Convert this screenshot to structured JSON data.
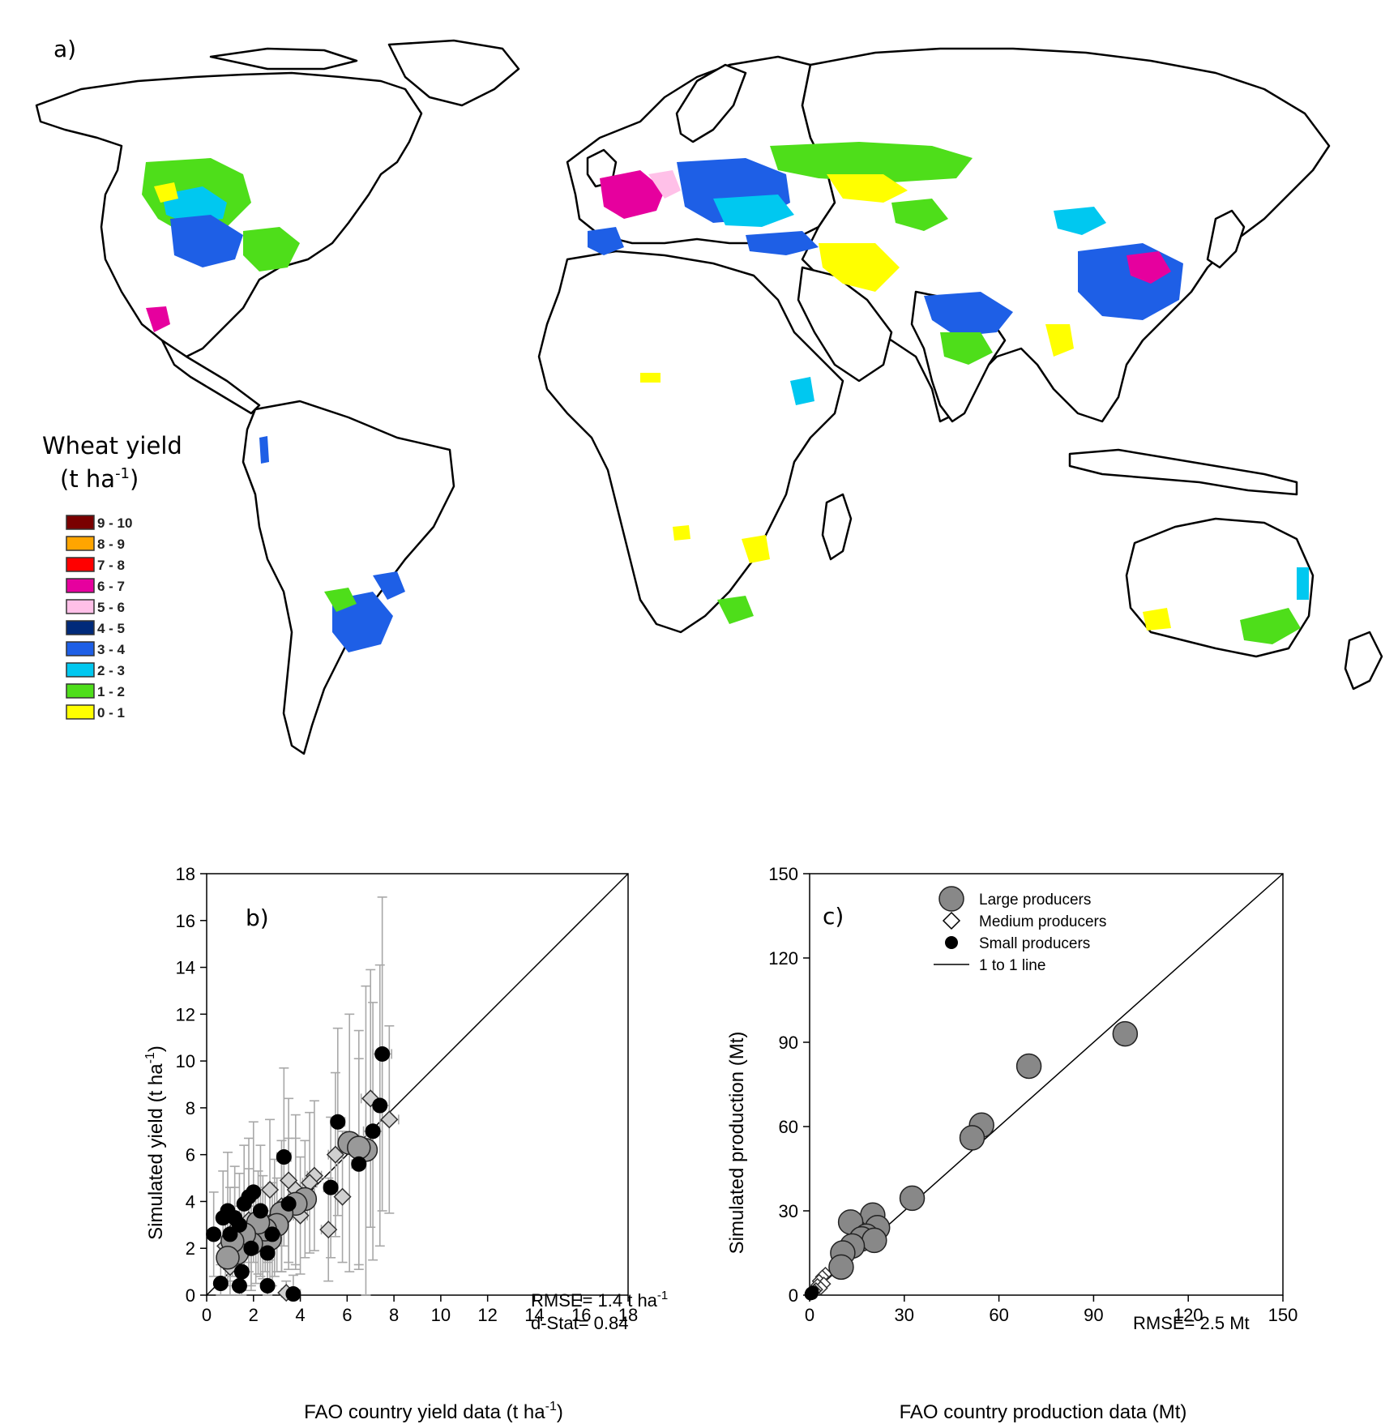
{
  "map_panel": {
    "label": "a)",
    "legend_title_line1": "Wheat yield",
    "legend_title_line2_base": "(t ha",
    "legend_title_line2_sup": "-1",
    "legend_title_line2_end": ")",
    "legend": [
      {
        "label": "9 - 10",
        "color": "#7a0000"
      },
      {
        "label": "8 - 9",
        "color": "#ffa500"
      },
      {
        "label": "7 - 8",
        "color": "#ff0000"
      },
      {
        "label": "6 - 7",
        "color": "#e6009e"
      },
      {
        "label": "5 - 6",
        "color": "#ffc0e8"
      },
      {
        "label": "4 - 5",
        "color": "#002a7a"
      },
      {
        "label": "3 - 4",
        "color": "#1e5fe6"
      },
      {
        "label": "2 - 3",
        "color": "#00c8f0"
      },
      {
        "label": "1 - 2",
        "color": "#4ede1a"
      },
      {
        "label": "0 - 1",
        "color": "#ffff00"
      }
    ]
  },
  "chart_data": [
    {
      "type": "scatter",
      "panel_label": "b)",
      "xlabel_base": "FAO country yield data (t ha",
      "xlabel_sup": "-1",
      "xlabel_end": ")",
      "ylabel_base": "Simulated yield (t ha",
      "ylabel_sup": "-1",
      "ylabel_end": ")",
      "xlim": [
        0,
        18
      ],
      "ylim": [
        0,
        18
      ],
      "xticks": [
        0,
        2,
        4,
        6,
        8,
        10,
        12,
        14,
        16,
        18
      ],
      "yticks": [
        0,
        2,
        4,
        6,
        8,
        10,
        12,
        14,
        16,
        18
      ],
      "one_to_one_line": true,
      "stats_line1_base": "RMSE= 1.4 t ha",
      "stats_line1_sup": "-1",
      "stats_line2": "d-Stat= 0.84",
      "series": [
        {
          "name": "Large producers",
          "marker": "circle-large",
          "color": "#999999",
          "points": [
            {
              "x": 6.1,
              "y": 6.5,
              "xerr": 0.4,
              "yerr": 5.5
            },
            {
              "x": 6.8,
              "y": 6.2,
              "xerr": 0.4,
              "yerr": 7.0
            },
            {
              "x": 6.5,
              "y": 6.3,
              "xerr": 0.3,
              "yerr": 5.0
            },
            {
              "x": 4.2,
              "y": 4.1,
              "xerr": 0.3,
              "yerr": 2.5
            },
            {
              "x": 3.8,
              "y": 3.9,
              "xerr": 0.3,
              "yerr": 2.8
            },
            {
              "x": 3.2,
              "y": 3.5,
              "xerr": 0.3,
              "yerr": 2.5
            },
            {
              "x": 3.0,
              "y": 3.0,
              "xerr": 0.3,
              "yerr": 2.0
            },
            {
              "x": 2.7,
              "y": 2.4,
              "xerr": 0.3,
              "yerr": 2.0
            },
            {
              "x": 2.5,
              "y": 2.8,
              "xerr": 0.2,
              "yerr": 1.8
            },
            {
              "x": 2.2,
              "y": 3.1,
              "xerr": 0.2,
              "yerr": 2.2
            },
            {
              "x": 1.9,
              "y": 2.2,
              "xerr": 0.2,
              "yerr": 1.8
            },
            {
              "x": 1.6,
              "y": 2.6,
              "xerr": 0.2,
              "yerr": 1.6
            },
            {
              "x": 1.3,
              "y": 1.8,
              "xerr": 0.2,
              "yerr": 1.5
            },
            {
              "x": 1.1,
              "y": 2.3,
              "xerr": 0.2,
              "yerr": 1.5
            },
            {
              "x": 0.9,
              "y": 1.6,
              "xerr": 0.2,
              "yerr": 1.2
            }
          ]
        },
        {
          "name": "Medium producers",
          "marker": "diamond",
          "color": "#d0d0d0",
          "points": [
            {
              "x": 7.0,
              "y": 8.4,
              "xerr": 0.4,
              "yerr": 5.5
            },
            {
              "x": 7.8,
              "y": 7.5,
              "xerr": 0.4,
              "yerr": 4.0
            },
            {
              "x": 5.5,
              "y": 6.0,
              "xerr": 0.3,
              "yerr": 3.5
            },
            {
              "x": 5.8,
              "y": 4.2,
              "xerr": 0.3,
              "yerr": 2.8
            },
            {
              "x": 4.6,
              "y": 5.1,
              "xerr": 0.3,
              "yerr": 3.2
            },
            {
              "x": 4.4,
              "y": 4.8,
              "xerr": 0.3,
              "yerr": 3.0
            },
            {
              "x": 5.2,
              "y": 2.8,
              "xerr": 0.3,
              "yerr": 2.2
            },
            {
              "x": 3.8,
              "y": 4.5,
              "xerr": 0.3,
              "yerr": 3.2
            },
            {
              "x": 4.0,
              "y": 3.4,
              "xerr": 0.3,
              "yerr": 2.5
            },
            {
              "x": 3.5,
              "y": 4.9,
              "xerr": 0.3,
              "yerr": 3.5
            },
            {
              "x": 2.7,
              "y": 4.5,
              "xerr": 0.3,
              "yerr": 3.0
            },
            {
              "x": 3.2,
              "y": 3.8,
              "xerr": 0.3,
              "yerr": 2.8
            },
            {
              "x": 2.9,
              "y": 3.3,
              "xerr": 0.3,
              "yerr": 2.5
            },
            {
              "x": 2.4,
              "y": 2.9,
              "xerr": 0.2,
              "yerr": 2.2
            },
            {
              "x": 2.1,
              "y": 2.5,
              "xerr": 0.2,
              "yerr": 2.0
            },
            {
              "x": 1.8,
              "y": 3.2,
              "xerr": 0.2,
              "yerr": 2.2
            },
            {
              "x": 1.5,
              "y": 2.0,
              "xerr": 0.2,
              "yerr": 1.8
            },
            {
              "x": 1.2,
              "y": 2.8,
              "xerr": 0.2,
              "yerr": 1.8
            },
            {
              "x": 1.0,
              "y": 1.2,
              "xerr": 0.2,
              "yerr": 1.2
            },
            {
              "x": 0.8,
              "y": 2.1,
              "xerr": 0.2,
              "yerr": 1.5
            },
            {
              "x": 3.4,
              "y": 0.1,
              "xerr": 0.2,
              "yerr": 0.5
            }
          ]
        },
        {
          "name": "Small producers",
          "marker": "circle-small",
          "color": "#000000",
          "points": [
            {
              "x": 7.5,
              "y": 10.3,
              "xerr": 0.4,
              "yerr": 6.7
            },
            {
              "x": 7.4,
              "y": 8.1,
              "xerr": 0.4,
              "yerr": 6.0
            },
            {
              "x": 7.1,
              "y": 7.0,
              "xerr": 0.4,
              "yerr": 5.5
            },
            {
              "x": 5.6,
              "y": 7.4,
              "xerr": 0.3,
              "yerr": 4.0
            },
            {
              "x": 6.5,
              "y": 5.6,
              "xerr": 0.3,
              "yerr": 4.5
            },
            {
              "x": 5.3,
              "y": 4.6,
              "xerr": 0.3,
              "yerr": 3.0
            },
            {
              "x": 3.3,
              "y": 5.9,
              "xerr": 0.3,
              "yerr": 3.8
            },
            {
              "x": 3.5,
              "y": 3.9,
              "xerr": 0.3,
              "yerr": 2.8
            },
            {
              "x": 3.7,
              "y": 0.05,
              "xerr": 0.3,
              "yerr": 0.8
            },
            {
              "x": 2.6,
              "y": 0.4,
              "xerr": 0.2,
              "yerr": 1.0
            },
            {
              "x": 2.8,
              "y": 2.6,
              "xerr": 0.3,
              "yerr": 2.2
            },
            {
              "x": 2.6,
              "y": 1.8,
              "xerr": 0.2,
              "yerr": 1.8
            },
            {
              "x": 2.3,
              "y": 3.6,
              "xerr": 0.2,
              "yerr": 2.8
            },
            {
              "x": 2.0,
              "y": 4.4,
              "xerr": 0.2,
              "yerr": 3.0
            },
            {
              "x": 1.8,
              "y": 4.2,
              "xerr": 0.2,
              "yerr": 2.5
            },
            {
              "x": 1.6,
              "y": 3.9,
              "xerr": 0.2,
              "yerr": 2.5
            },
            {
              "x": 1.4,
              "y": 3.0,
              "xerr": 0.2,
              "yerr": 2.2
            },
            {
              "x": 1.5,
              "y": 1.0,
              "xerr": 0.2,
              "yerr": 1.2
            },
            {
              "x": 1.4,
              "y": 0.4,
              "xerr": 0.2,
              "yerr": 0.8
            },
            {
              "x": 1.2,
              "y": 3.3,
              "xerr": 0.2,
              "yerr": 2.2
            },
            {
              "x": 1.0,
              "y": 2.6,
              "xerr": 0.2,
              "yerr": 2.0
            },
            {
              "x": 0.9,
              "y": 3.6,
              "xerr": 0.2,
              "yerr": 2.5
            },
            {
              "x": 0.7,
              "y": 3.3,
              "xerr": 0.2,
              "yerr": 2.0
            },
            {
              "x": 0.3,
              "y": 2.6,
              "xerr": 0.2,
              "yerr": 1.8
            },
            {
              "x": 0.6,
              "y": 0.5,
              "xerr": 0.2,
              "yerr": 0.8
            },
            {
              "x": 1.9,
              "y": 2.0,
              "xerr": 0.2,
              "yerr": 1.8
            }
          ]
        }
      ]
    },
    {
      "type": "scatter",
      "panel_label": "c)",
      "xlabel": "FAO country production data (Mt)",
      "ylabel": "Simulated production (Mt)",
      "xlim": [
        0,
        150
      ],
      "ylim": [
        0,
        150
      ],
      "xticks": [
        0,
        30,
        60,
        90,
        120,
        150
      ],
      "yticks": [
        0,
        30,
        60,
        90,
        120,
        150
      ],
      "one_to_one_line": true,
      "stats_line": "RMSE= 2.5 Mt",
      "legend_position": "top-left",
      "legend": [
        {
          "label": "Large producers",
          "marker": "circle-large"
        },
        {
          "label": "Medium producers",
          "marker": "diamond"
        },
        {
          "label": "Small producers",
          "marker": "circle-small"
        },
        {
          "label": "1 to 1 line",
          "marker": "line"
        }
      ],
      "series": [
        {
          "name": "Large producers",
          "marker": "circle-large",
          "color": "#888888",
          "points": [
            {
              "x": 100,
              "y": 93
            },
            {
              "x": 69.5,
              "y": 81.5
            },
            {
              "x": 54.5,
              "y": 60.5,
              "xerr": 2.5
            },
            {
              "x": 51.5,
              "y": 56,
              "xerr": 3.5
            },
            {
              "x": 32.5,
              "y": 34.5
            },
            {
              "x": 20,
              "y": 28.5
            },
            {
              "x": 13,
              "y": 26
            },
            {
              "x": 21.5,
              "y": 24
            },
            {
              "x": 18,
              "y": 21
            },
            {
              "x": 16.5,
              "y": 20
            },
            {
              "x": 20.5,
              "y": 19.5
            },
            {
              "x": 13.5,
              "y": 17.5,
              "xerr": 1.5
            },
            {
              "x": 10.5,
              "y": 15
            },
            {
              "x": 10,
              "y": 10
            }
          ]
        },
        {
          "name": "Medium producers",
          "marker": "diamond",
          "color": "#ffffff",
          "points": [
            {
              "x": 5,
              "y": 7.5
            },
            {
              "x": 4,
              "y": 6.5
            },
            {
              "x": 3,
              "y": 5
            },
            {
              "x": 4.5,
              "y": 4
            },
            {
              "x": 2.5,
              "y": 3.5
            },
            {
              "x": 3.5,
              "y": 2.5
            },
            {
              "x": 2,
              "y": 2
            },
            {
              "x": 1.5,
              "y": 1.5
            }
          ]
        },
        {
          "name": "Small producers",
          "marker": "circle-small",
          "color": "#000000",
          "points": [
            {
              "x": 0.5,
              "y": 0.8
            },
            {
              "x": 0.3,
              "y": 0.3
            },
            {
              "x": 1,
              "y": 1.2
            },
            {
              "x": 0.8,
              "y": 0.5
            }
          ]
        }
      ]
    }
  ]
}
